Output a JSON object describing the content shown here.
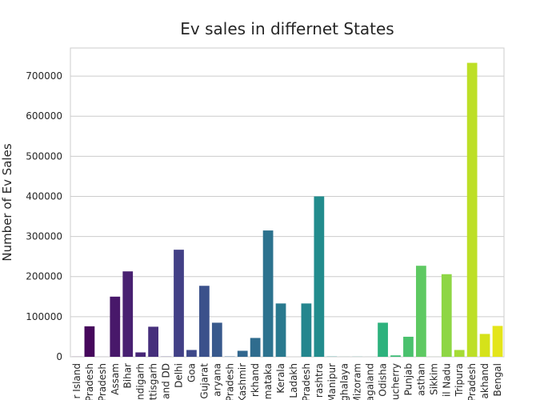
{
  "chart_data": {
    "type": "bar",
    "title": "Ev sales in differnet States",
    "xlabel": "",
    "ylabel": "Number of Ev Sales",
    "ylim": [
      0,
      770000
    ],
    "yticks": [
      0,
      100000,
      200000,
      300000,
      400000,
      500000,
      600000,
      700000
    ],
    "grid": true,
    "categories": [
      "Andaman & Nicobar Island",
      "Andhra Pradesh",
      "Arunachal Pradesh",
      "Assam",
      "Bihar",
      "Chandigarh",
      "Chhattisgarh",
      "DNH and DD",
      "Delhi",
      "Goa",
      "Gujarat",
      "Haryana",
      "Himachal Pradesh",
      "Jammu and Kashmir",
      "Jharkhand",
      "Karnataka",
      "Kerala",
      "Ladakh",
      "Madhya Pradesh",
      "Maharashtra",
      "Manipur",
      "Meghalaya",
      "Mizoram",
      "Nagaland",
      "Odisha",
      "Puducherry",
      "Punjab",
      "Rajasthan",
      "Sikkim",
      "Tamil Nadu",
      "Tripura",
      "Uttar Pradesh",
      "Uttarakhand",
      "West Bengal"
    ],
    "tick_labels": [
      "r Island",
      "Pradesh",
      "Pradesh",
      "Assam",
      "Bihar",
      "ndigarh",
      "ttisgarh",
      "and DD",
      "Delhi",
      "Goa",
      "Gujarat",
      "aryana",
      "Pradesh",
      "Kashmir",
      "rkhand",
      "mataka",
      "Kerala",
      "Ladakh",
      "Pradesh",
      "rashtra",
      "Manipur",
      "ghalaya",
      "Mizoram",
      "agaland",
      "Odisha",
      "ucherry",
      "Punjab",
      "asthan",
      "Sikkim",
      "il Nadu",
      "Tripura",
      "Pradesh",
      "akhand",
      "Bengal"
    ],
    "values": [
      200,
      76000,
      50,
      150000,
      213000,
      11000,
      75000,
      400,
      267000,
      17000,
      177000,
      85000,
      700,
      15000,
      47000,
      315000,
      133000,
      0,
      133000,
      400000,
      500,
      100,
      200,
      50,
      85000,
      3500,
      50000,
      227000,
      50,
      206000,
      17000,
      733000,
      57000,
      77000
    ],
    "colors": [
      "#440154",
      "#46085c",
      "#471064",
      "#48186a",
      "#482071",
      "#472777",
      "#462f7c",
      "#443a83",
      "#424086",
      "#3e4989",
      "#3b518b",
      "#38598c",
      "#35608d",
      "#32678e",
      "#2f6c8e",
      "#2c728e",
      "#29798e",
      "#277f8e",
      "#24868e",
      "#228c8d",
      "#20928c",
      "#1f988b",
      "#1fa088",
      "#24aa83",
      "#2db27d",
      "#3bbb75",
      "#4ac16d",
      "#5ec962",
      "#75d054",
      "#8ed645",
      "#a5db36",
      "#bddf26",
      "#d5e21a",
      "#e4e51a"
    ]
  }
}
